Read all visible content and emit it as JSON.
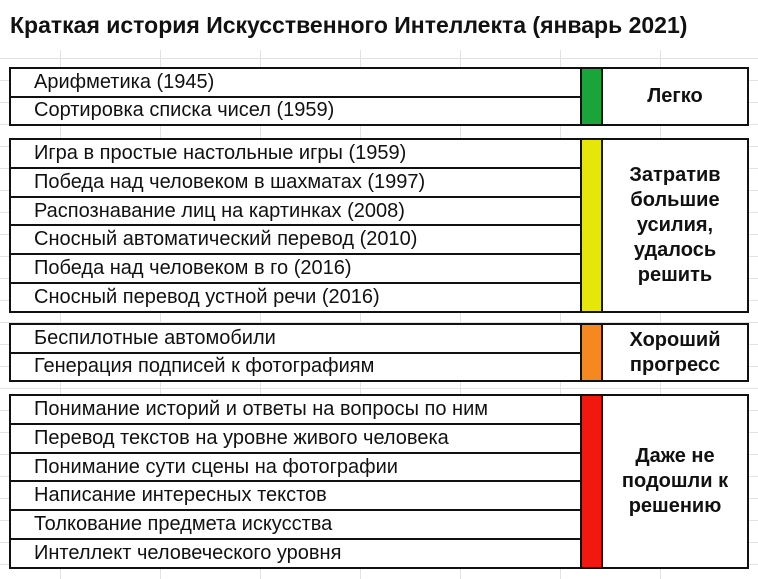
{
  "title": "Краткая история Искусственного Интеллекта (январь 2021)",
  "groups": [
    {
      "label": "Легко",
      "color": "#1aa53a",
      "items": [
        "Арифметика (1945)",
        "Сортировка списка чисел (1959)"
      ]
    },
    {
      "label": "Затратив\nбольшие\nусилия,\nудалось\nрешить",
      "color": "#e6e60a",
      "items": [
        "Игра в простые настольные игры (1959)",
        "Победа над человеком в шахматах (1997)",
        "Распознавание лиц на картинках (2008)",
        "Сносный автоматический перевод (2010)",
        "Победа над человеком в го (2016)",
        "Сносный перевод устной речи (2016)"
      ]
    },
    {
      "label": "Хороший\nпрогресс",
      "color": "#f5891f",
      "items": [
        "Беспилотные автомобили",
        "Генерация подписей к фотографиям"
      ]
    },
    {
      "label": "Даже не\nподошли к\nрешению",
      "color": "#f0180f",
      "items": [
        "Понимание историй и ответы на вопросы по ним",
        "Перевод текстов на уровне живого человека",
        "Понимание сути сцены на фотографии",
        "Написание интересных текстов",
        "Толкование предмета искусства",
        "Интеллект человеческого уровня"
      ]
    }
  ]
}
